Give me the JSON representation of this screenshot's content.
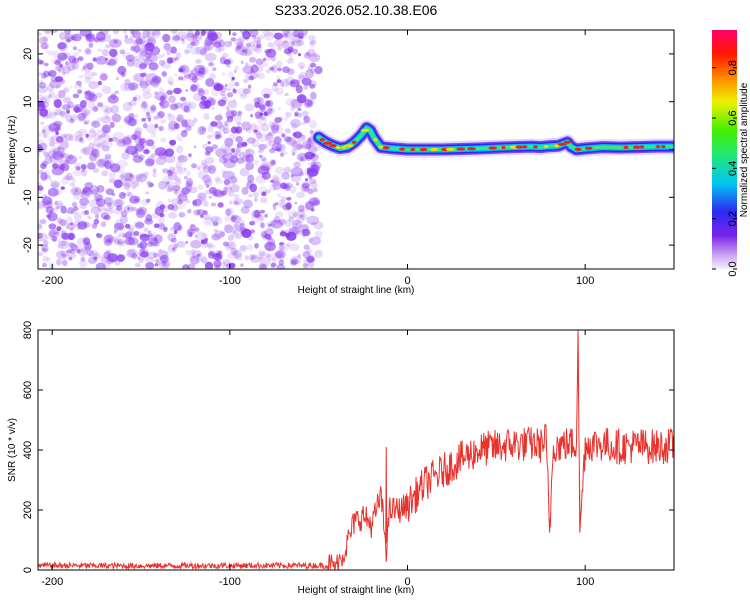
{
  "title": "S233.2026.052.10.38.E06",
  "chart_data": [
    {
      "type": "heatmap",
      "xlabel": "Height of straight line (km)",
      "ylabel": "Frequency (Hz)",
      "xlim": [
        -208,
        150
      ],
      "ylim": [
        -25,
        25
      ],
      "x_ticks": [
        -200,
        -100,
        0,
        100
      ],
      "y_ticks": [
        -20,
        -10,
        0,
        10,
        20
      ],
      "colorbar": {
        "label": "Normalized spectral amplitude",
        "range": [
          0,
          0.95
        ],
        "ticks": [
          "0.0",
          "0.2",
          "0.4",
          "0.6",
          "0.8"
        ],
        "colormap": "rainbow (purple → blue → cyan → green → yellow → red → magenta)"
      },
      "features": {
        "noise_region_x": [
          -208,
          -50
        ],
        "noise_color": "#8a3cf0",
        "signal_track": {
          "x": [
            -50,
            -46,
            -42,
            -38,
            -34,
            -30,
            -26,
            -23,
            -21,
            -19,
            -17,
            -15,
            -10,
            0,
            20,
            40,
            60,
            70,
            75,
            80,
            85,
            90,
            92,
            95,
            100,
            110,
            120,
            130,
            140,
            150
          ],
          "freq": [
            2.5,
            1.5,
            0.8,
            0.3,
            0.5,
            1.5,
            3.0,
            4.5,
            4.0,
            2.5,
            1.5,
            0.5,
            0.3,
            0.0,
            0.0,
            0.2,
            0.5,
            0.6,
            0.5,
            0.7,
            0.8,
            1.5,
            0.6,
            0.0,
            0.2,
            0.5,
            0.4,
            0.5,
            0.6,
            0.6
          ]
        }
      }
    },
    {
      "type": "line",
      "xlabel": "Height of straight line (km)",
      "ylabel": "SNR (10 * v/v)",
      "xlim": [
        -208,
        150
      ],
      "ylim": [
        0,
        800
      ],
      "x_ticks": [
        -200,
        -100,
        0,
        100
      ],
      "y_ticks": [
        0,
        200,
        400,
        600,
        800
      ],
      "series": [
        {
          "color": "#e8322b",
          "x": [
            -208,
            -150,
            -100,
            -60,
            -40,
            -35,
            -30,
            -25,
            -20,
            -15,
            -12,
            -10,
            -5,
            0,
            10,
            20,
            30,
            40,
            50,
            60,
            70,
            75,
            78,
            80,
            82,
            85,
            90,
            95,
            96,
            97,
            100,
            110,
            120,
            130,
            140,
            150
          ],
          "values": [
            15,
            14,
            15,
            15,
            15,
            70,
            160,
            180,
            150,
            250,
            70,
            200,
            200,
            215,
            290,
            330,
            370,
            400,
            410,
            420,
            420,
            415,
            440,
            125,
            420,
            415,
            420,
            420,
            800,
            125,
            420,
            420,
            410,
            415,
            410,
            415
          ]
        }
      ]
    }
  ]
}
